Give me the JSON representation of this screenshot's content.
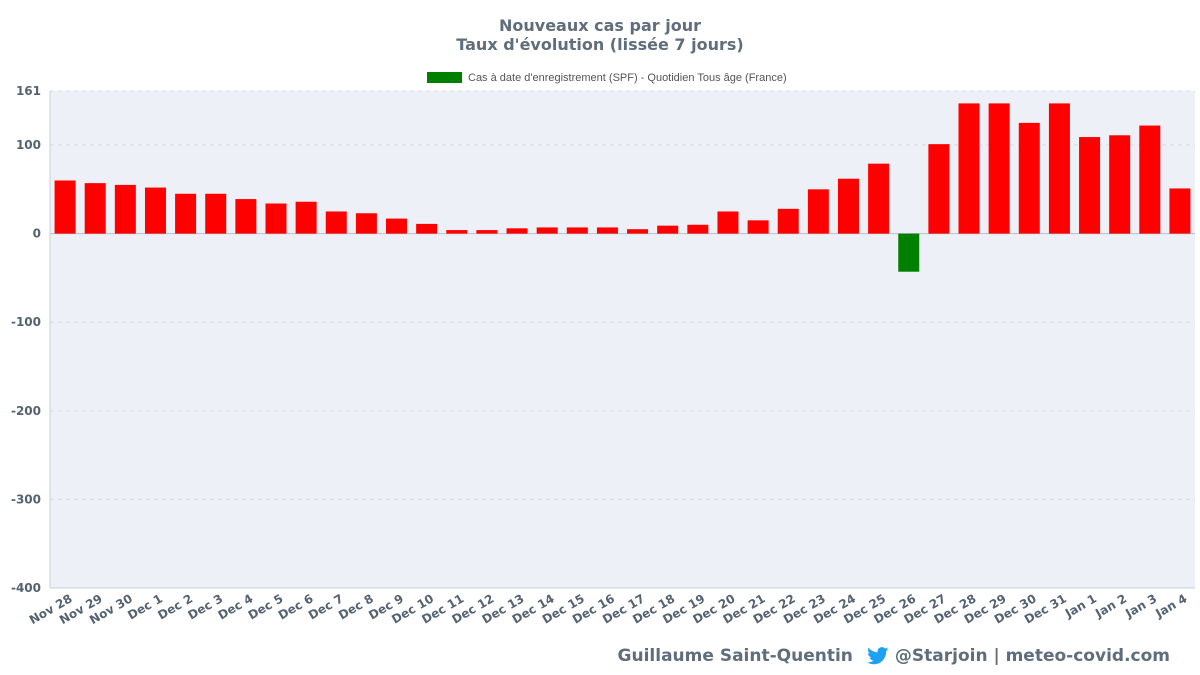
{
  "chart_data": {
    "type": "bar",
    "title": "Nouveaux cas par jour",
    "subtitle": "Taux d'évolution (lissée 7 jours)",
    "legend": {
      "label": "Cas à date d'enregistrement (SPF) - Quotidien Tous âge (France)",
      "color": "#008000",
      "placement": "top-center"
    },
    "categories": [
      "Nov 28",
      "Nov 29",
      "Nov 30",
      "Dec 1",
      "Dec 2",
      "Dec 3",
      "Dec 4",
      "Dec 5",
      "Dec 6",
      "Dec 7",
      "Dec 8",
      "Dec 9",
      "Dec 10",
      "Dec 11",
      "Dec 12",
      "Dec 13",
      "Dec 14",
      "Dec 15",
      "Dec 16",
      "Dec 17",
      "Dec 18",
      "Dec 19",
      "Dec 20",
      "Dec 21",
      "Dec 22",
      "Dec 23",
      "Dec 24",
      "Dec 25",
      "Dec 26",
      "Dec 27",
      "Dec 28",
      "Dec 29",
      "Dec 30",
      "Dec 31",
      "Jan 1",
      "Jan 2",
      "Jan 3",
      "Jan 4"
    ],
    "values": [
      60,
      57,
      55,
      52,
      45,
      45,
      39,
      34,
      36,
      25,
      23,
      17,
      11,
      4,
      4,
      6,
      7,
      7,
      7,
      5,
      9,
      10,
      25,
      15,
      28,
      50,
      62,
      79,
      -43,
      101,
      147,
      147,
      125,
      147,
      109,
      111,
      122,
      51
    ],
    "ylim": [
      -400,
      161
    ],
    "yticks": [
      161,
      100,
      0,
      -100,
      -200,
      -300,
      -400
    ],
    "positive_color": "#ff0000",
    "negative_color": "#008000",
    "plot_background": "#edf1f7",
    "grid": true
  },
  "footer": {
    "author": "Guillaume Saint-Quentin",
    "handle": "@Starjoin | meteo-covid.com",
    "icon": "twitter-bird-icon",
    "icon_color": "#1da1f2"
  }
}
